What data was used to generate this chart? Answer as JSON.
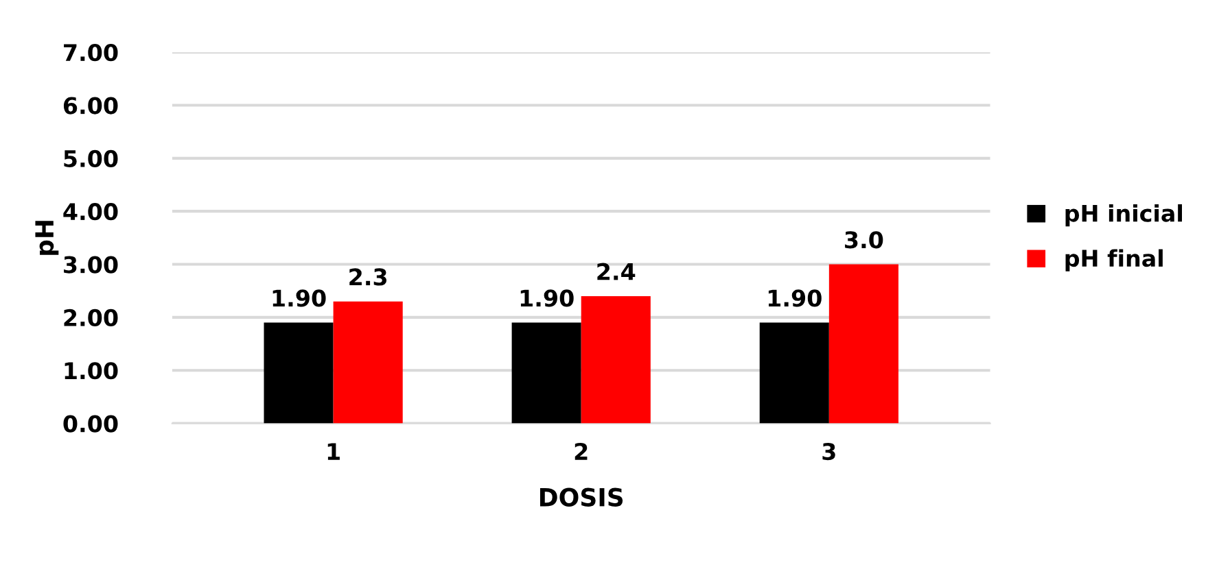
{
  "chart_data": {
    "type": "bar",
    "xlabel": "DOSIS",
    "ylabel": "pH",
    "categories": [
      "1",
      "2",
      "3"
    ],
    "series": [
      {
        "name": "pH inicial",
        "color": "#000000",
        "values": [
          1.9,
          1.9,
          1.9
        ],
        "value_labels": [
          "1.90",
          "1.90",
          "1.90"
        ]
      },
      {
        "name": "pH final",
        "color": "#ff0000",
        "values": [
          2.3,
          2.4,
          3.0
        ],
        "value_labels": [
          "2.3",
          "2.4",
          "3.0"
        ]
      }
    ],
    "ylim": [
      0,
      7
    ],
    "yticks": [
      "0.00",
      "1.00",
      "2.00",
      "3.00",
      "4.00",
      "5.00",
      "6.00",
      "7.00"
    ],
    "grid": "y",
    "legend": "right"
  }
}
